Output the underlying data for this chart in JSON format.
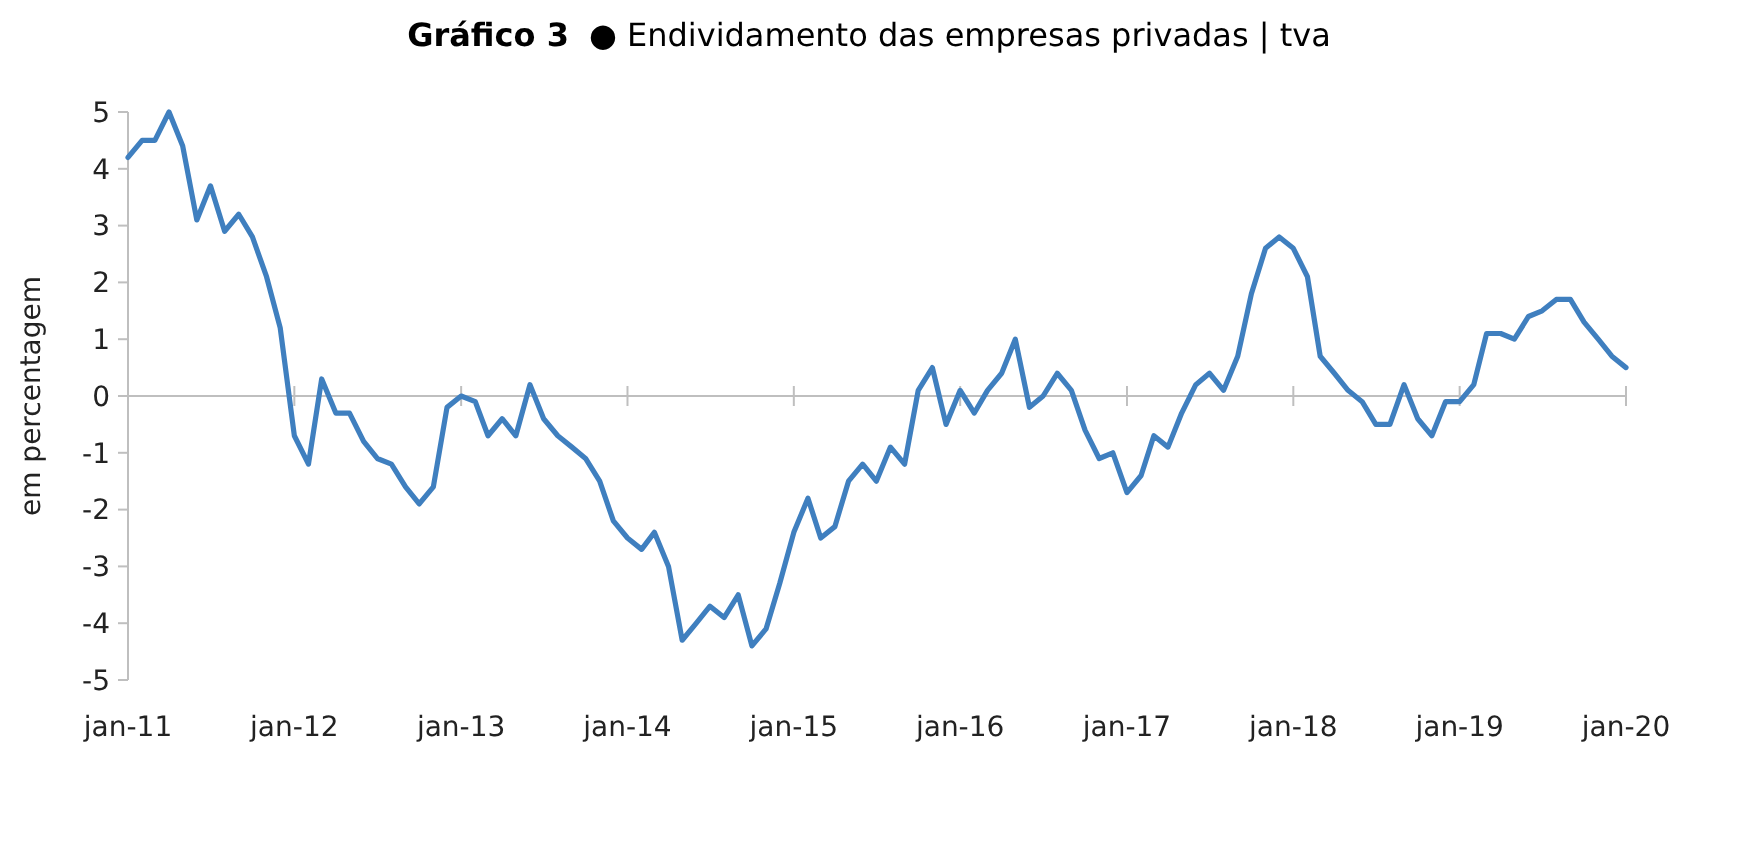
{
  "chart_data": {
    "type": "line",
    "title": "Gráfico 3",
    "subtitle": "● Endividamento das empresas privadas | tva",
    "ylabel": "em percentagem",
    "x": [
      "2011-01",
      "2011-02",
      "2011-03",
      "2011-04",
      "2011-05",
      "2011-06",
      "2011-07",
      "2011-08",
      "2011-09",
      "2011-10",
      "2011-11",
      "2011-12",
      "2012-01",
      "2012-02",
      "2012-03",
      "2012-04",
      "2012-05",
      "2012-06",
      "2012-07",
      "2012-08",
      "2012-09",
      "2012-10",
      "2012-11",
      "2012-12",
      "2013-01",
      "2013-02",
      "2013-03",
      "2013-04",
      "2013-05",
      "2013-06",
      "2013-07",
      "2013-08",
      "2013-09",
      "2013-10",
      "2013-11",
      "2013-12",
      "2014-01",
      "2014-02",
      "2014-03",
      "2014-04",
      "2014-05",
      "2014-06",
      "2014-07",
      "2014-08",
      "2014-09",
      "2014-10",
      "2014-11",
      "2014-12",
      "2015-01",
      "2015-02",
      "2015-03",
      "2015-04",
      "2015-05",
      "2015-06",
      "2015-07",
      "2015-08",
      "2015-09",
      "2015-10",
      "2015-11",
      "2015-12",
      "2016-01",
      "2016-02",
      "2016-03",
      "2016-04",
      "2016-05",
      "2016-06",
      "2016-07",
      "2016-08",
      "2016-09",
      "2016-10",
      "2016-11",
      "2016-12",
      "2017-01",
      "2017-02",
      "2017-03",
      "2017-04",
      "2017-05",
      "2017-06",
      "2017-07",
      "2017-08",
      "2017-09",
      "2017-10",
      "2017-11",
      "2017-12",
      "2018-01",
      "2018-02",
      "2018-03",
      "2018-04",
      "2018-05",
      "2018-06",
      "2018-07",
      "2018-08",
      "2018-09",
      "2018-10",
      "2018-11",
      "2018-12",
      "2019-01",
      "2019-02",
      "2019-03",
      "2019-04",
      "2019-05",
      "2019-06",
      "2019-07",
      "2019-08",
      "2019-09",
      "2019-10",
      "2019-11",
      "2019-12",
      "2020-01"
    ],
    "series": [
      {
        "color": "#3f7fbf",
        "values": [
          4.2,
          4.5,
          4.5,
          5.0,
          4.4,
          3.1,
          3.7,
          2.9,
          3.2,
          2.8,
          2.1,
          1.2,
          -0.7,
          -1.2,
          0.3,
          -0.3,
          -0.3,
          -0.8,
          -1.1,
          -1.2,
          -1.6,
          -1.9,
          -1.6,
          -0.2,
          0.0,
          -0.1,
          -0.7,
          -0.4,
          -0.7,
          0.2,
          -0.4,
          -0.7,
          -0.9,
          -1.1,
          -1.5,
          -2.2,
          -2.5,
          -2.7,
          -2.4,
          -3.0,
          -4.3,
          -4.0,
          -3.7,
          -3.9,
          -3.5,
          -4.4,
          -4.1,
          -3.3,
          -2.4,
          -1.8,
          -2.5,
          -2.3,
          -1.5,
          -1.2,
          -1.5,
          -0.9,
          -1.2,
          0.1,
          0.5,
          -0.5,
          0.1,
          -0.3,
          0.1,
          0.4,
          1.0,
          -0.2,
          0.0,
          0.4,
          0.1,
          -0.6,
          -1.1,
          -1.0,
          -1.7,
          -1.4,
          -0.7,
          -0.9,
          -0.3,
          0.2,
          0.4,
          0.1,
          0.7,
          1.8,
          2.6,
          2.8,
          2.6,
          2.1,
          0.7,
          0.4,
          0.1,
          -0.1,
          -0.5,
          -0.5,
          0.2,
          -0.4,
          -0.7,
          -0.1,
          -0.1,
          0.2,
          1.1,
          1.1,
          1.0,
          1.4,
          1.5,
          1.7,
          1.7,
          1.3,
          1.0,
          0.7,
          0.5
        ]
      }
    ],
    "xlim": [
      "2011-01",
      "2020-01"
    ],
    "xticks": [
      {
        "value": "2011-01",
        "label": "jan-11"
      },
      {
        "value": "2012-01",
        "label": "jan-12"
      },
      {
        "value": "2013-01",
        "label": "jan-13"
      },
      {
        "value": "2014-01",
        "label": "jan-14"
      },
      {
        "value": "2015-01",
        "label": "jan-15"
      },
      {
        "value": "2016-01",
        "label": "jan-16"
      },
      {
        "value": "2017-01",
        "label": "jan-17"
      },
      {
        "value": "2018-01",
        "label": "jan-18"
      },
      {
        "value": "2019-01",
        "label": "jan-19"
      },
      {
        "value": "2020-01",
        "label": "jan-20"
      }
    ],
    "ylim": [
      -5,
      5
    ],
    "yticks": [
      -5,
      -4,
      -3,
      -2,
      -1,
      0,
      1,
      2,
      3,
      4,
      5
    ],
    "marker": "none",
    "line_style": "solid"
  }
}
